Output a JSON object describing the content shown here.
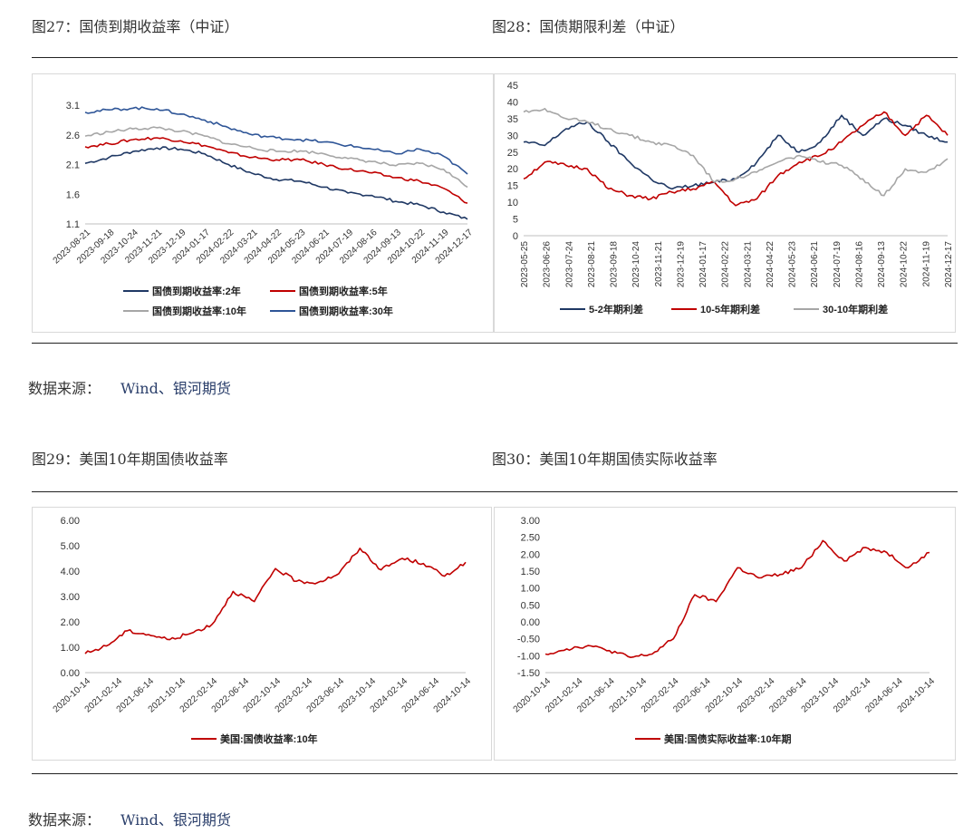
{
  "titles": {
    "fig27": "图27：国债到期收益率（中证）",
    "fig28": "图28：国债期限利差（中证）",
    "fig29": "图29：美国10年期国债收益率",
    "fig30": "图30：美国10年期国债实际收益率"
  },
  "source": {
    "label": "数据来源：",
    "value": "Wind、银河期货"
  },
  "chart_data": [
    {
      "id": "fig27",
      "type": "line",
      "ylim": [
        1.1,
        3.1
      ],
      "yticks": [
        "3.1",
        "2.6",
        "2.1",
        "1.6",
        "1.1"
      ],
      "ytick_values": [
        3.1,
        2.6,
        2.1,
        1.6,
        1.1
      ],
      "xticks": [
        "2023-08-21",
        "2023-09-18",
        "2023-10-24",
        "2023-11-21",
        "2023-12-19",
        "2024-01-17",
        "2024-02-22",
        "2024-03-21",
        "2024-04-22",
        "2024-05-23",
        "2024-06-21",
        "2024-07-19",
        "2024-08-16",
        "2024-09-13",
        "2024-10-22",
        "2024-11-19",
        "2024-12-17"
      ],
      "series": [
        {
          "name": "国债到期收益率:2年",
          "color": "#1f3864",
          "values": [
            2.12,
            2.22,
            2.32,
            2.38,
            2.36,
            2.28,
            2.1,
            1.95,
            1.85,
            1.82,
            1.72,
            1.62,
            1.58,
            1.48,
            1.42,
            1.3,
            1.18
          ]
        },
        {
          "name": "国债到期收益率:5年",
          "color": "#c00000",
          "values": [
            2.4,
            2.45,
            2.52,
            2.55,
            2.5,
            2.42,
            2.3,
            2.22,
            2.18,
            2.18,
            2.1,
            2.02,
            1.96,
            1.88,
            1.82,
            1.7,
            1.45
          ]
        },
        {
          "name": "国债到期收益率:10年",
          "color": "#a6a6a6",
          "values": [
            2.58,
            2.65,
            2.7,
            2.72,
            2.66,
            2.58,
            2.45,
            2.38,
            2.32,
            2.33,
            2.28,
            2.2,
            2.15,
            2.08,
            2.12,
            2.02,
            1.72
          ]
        },
        {
          "name": "国债到期收益率:30年",
          "color": "#2e5597",
          "values": [
            2.98,
            3.02,
            3.05,
            3.04,
            2.95,
            2.85,
            2.72,
            2.6,
            2.55,
            2.52,
            2.48,
            2.42,
            2.36,
            2.28,
            2.36,
            2.24,
            1.94
          ]
        }
      ]
    },
    {
      "id": "fig28",
      "type": "line",
      "ylim": [
        0,
        45
      ],
      "yticks": [
        "45",
        "40",
        "35",
        "30",
        "25",
        "20",
        "15",
        "10",
        "5",
        "0"
      ],
      "ytick_values": [
        45,
        40,
        35,
        30,
        25,
        20,
        15,
        10,
        5,
        0
      ],
      "xticks": [
        "2023-05-25",
        "2023-06-26",
        "2023-07-24",
        "2023-08-21",
        "2023-09-18",
        "2023-10-24",
        "2023-11-21",
        "2023-12-19",
        "2024-01-17",
        "2024-02-22",
        "2024-03-21",
        "2024-04-22",
        "2024-05-23",
        "2024-06-21",
        "2024-07-19",
        "2024-08-16",
        "2024-09-13",
        "2024-10-22",
        "2024-11-19",
        "2024-12-17"
      ],
      "series": [
        {
          "name": "5-2年期利差",
          "color": "#1f3864",
          "values": [
            28,
            27,
            32,
            34,
            28,
            22,
            17,
            14,
            15,
            16,
            17,
            22,
            30,
            25,
            28,
            36,
            30,
            35,
            33,
            30,
            28
          ]
        },
        {
          "name": "10-5年期利差",
          "color": "#c00000",
          "values": [
            17,
            22,
            21,
            20,
            14,
            12,
            11,
            13,
            14,
            16,
            9,
            11,
            18,
            22,
            24,
            28,
            33,
            37,
            30,
            36,
            30
          ]
        },
        {
          "name": "30-10年期利差",
          "color": "#a6a6a6",
          "values": [
            37,
            38,
            35,
            34,
            32,
            30,
            28,
            27,
            24,
            16,
            17,
            19,
            22,
            24,
            22,
            21,
            17,
            12,
            20,
            19,
            23
          ]
        }
      ]
    },
    {
      "id": "fig29",
      "type": "line",
      "ylim": [
        0,
        6
      ],
      "yticks": [
        "6.00",
        "5.00",
        "4.00",
        "3.00",
        "2.00",
        "1.00",
        "0.00"
      ],
      "ytick_values": [
        6,
        5,
        4,
        3,
        2,
        1,
        0
      ],
      "xticks": [
        "2020-10-14",
        "2021-02-14",
        "2021-06-14",
        "2021-10-14",
        "2022-02-14",
        "2022-06-14",
        "2022-10-14",
        "2023-02-14",
        "2023-06-14",
        "2023-10-14",
        "2024-02-14",
        "2024-06-14",
        "2024-10-14"
      ],
      "series": [
        {
          "name": "美国:国债收益率:10年",
          "color": "#c00000",
          "values": [
            0.75,
            1.05,
            1.65,
            1.5,
            1.3,
            1.55,
            1.9,
            3.2,
            2.8,
            4.1,
            3.6,
            3.55,
            3.9,
            4.9,
            4.05,
            4.5,
            4.3,
            3.8,
            4.35
          ]
        }
      ]
    },
    {
      "id": "fig30",
      "type": "line",
      "ylim": [
        -1.5,
        3.0
      ],
      "yticks": [
        "3.00",
        "2.50",
        "2.00",
        "1.50",
        "1.00",
        "0.50",
        "0.00",
        "-0.50",
        "-1.00",
        "-1.50"
      ],
      "ytick_values": [
        3,
        2.5,
        2,
        1.5,
        1,
        0.5,
        0,
        -0.5,
        -1,
        -1.5
      ],
      "xticks": [
        "2020-10-14",
        "2021-02-14",
        "2021-06-14",
        "2021-10-14",
        "2022-02-14",
        "2022-06-14",
        "2022-10-14",
        "2023-02-14",
        "2023-06-14",
        "2023-10-14",
        "2024-02-14",
        "2024-06-14",
        "2024-10-14"
      ],
      "series": [
        {
          "name": "美国:国债实际收益率:10年期",
          "color": "#c00000",
          "values": [
            -0.95,
            -0.8,
            -0.7,
            -0.85,
            -1.05,
            -0.95,
            -0.5,
            0.8,
            0.6,
            1.6,
            1.3,
            1.4,
            1.6,
            2.4,
            1.8,
            2.2,
            2.05,
            1.6,
            2.05
          ]
        }
      ]
    }
  ]
}
